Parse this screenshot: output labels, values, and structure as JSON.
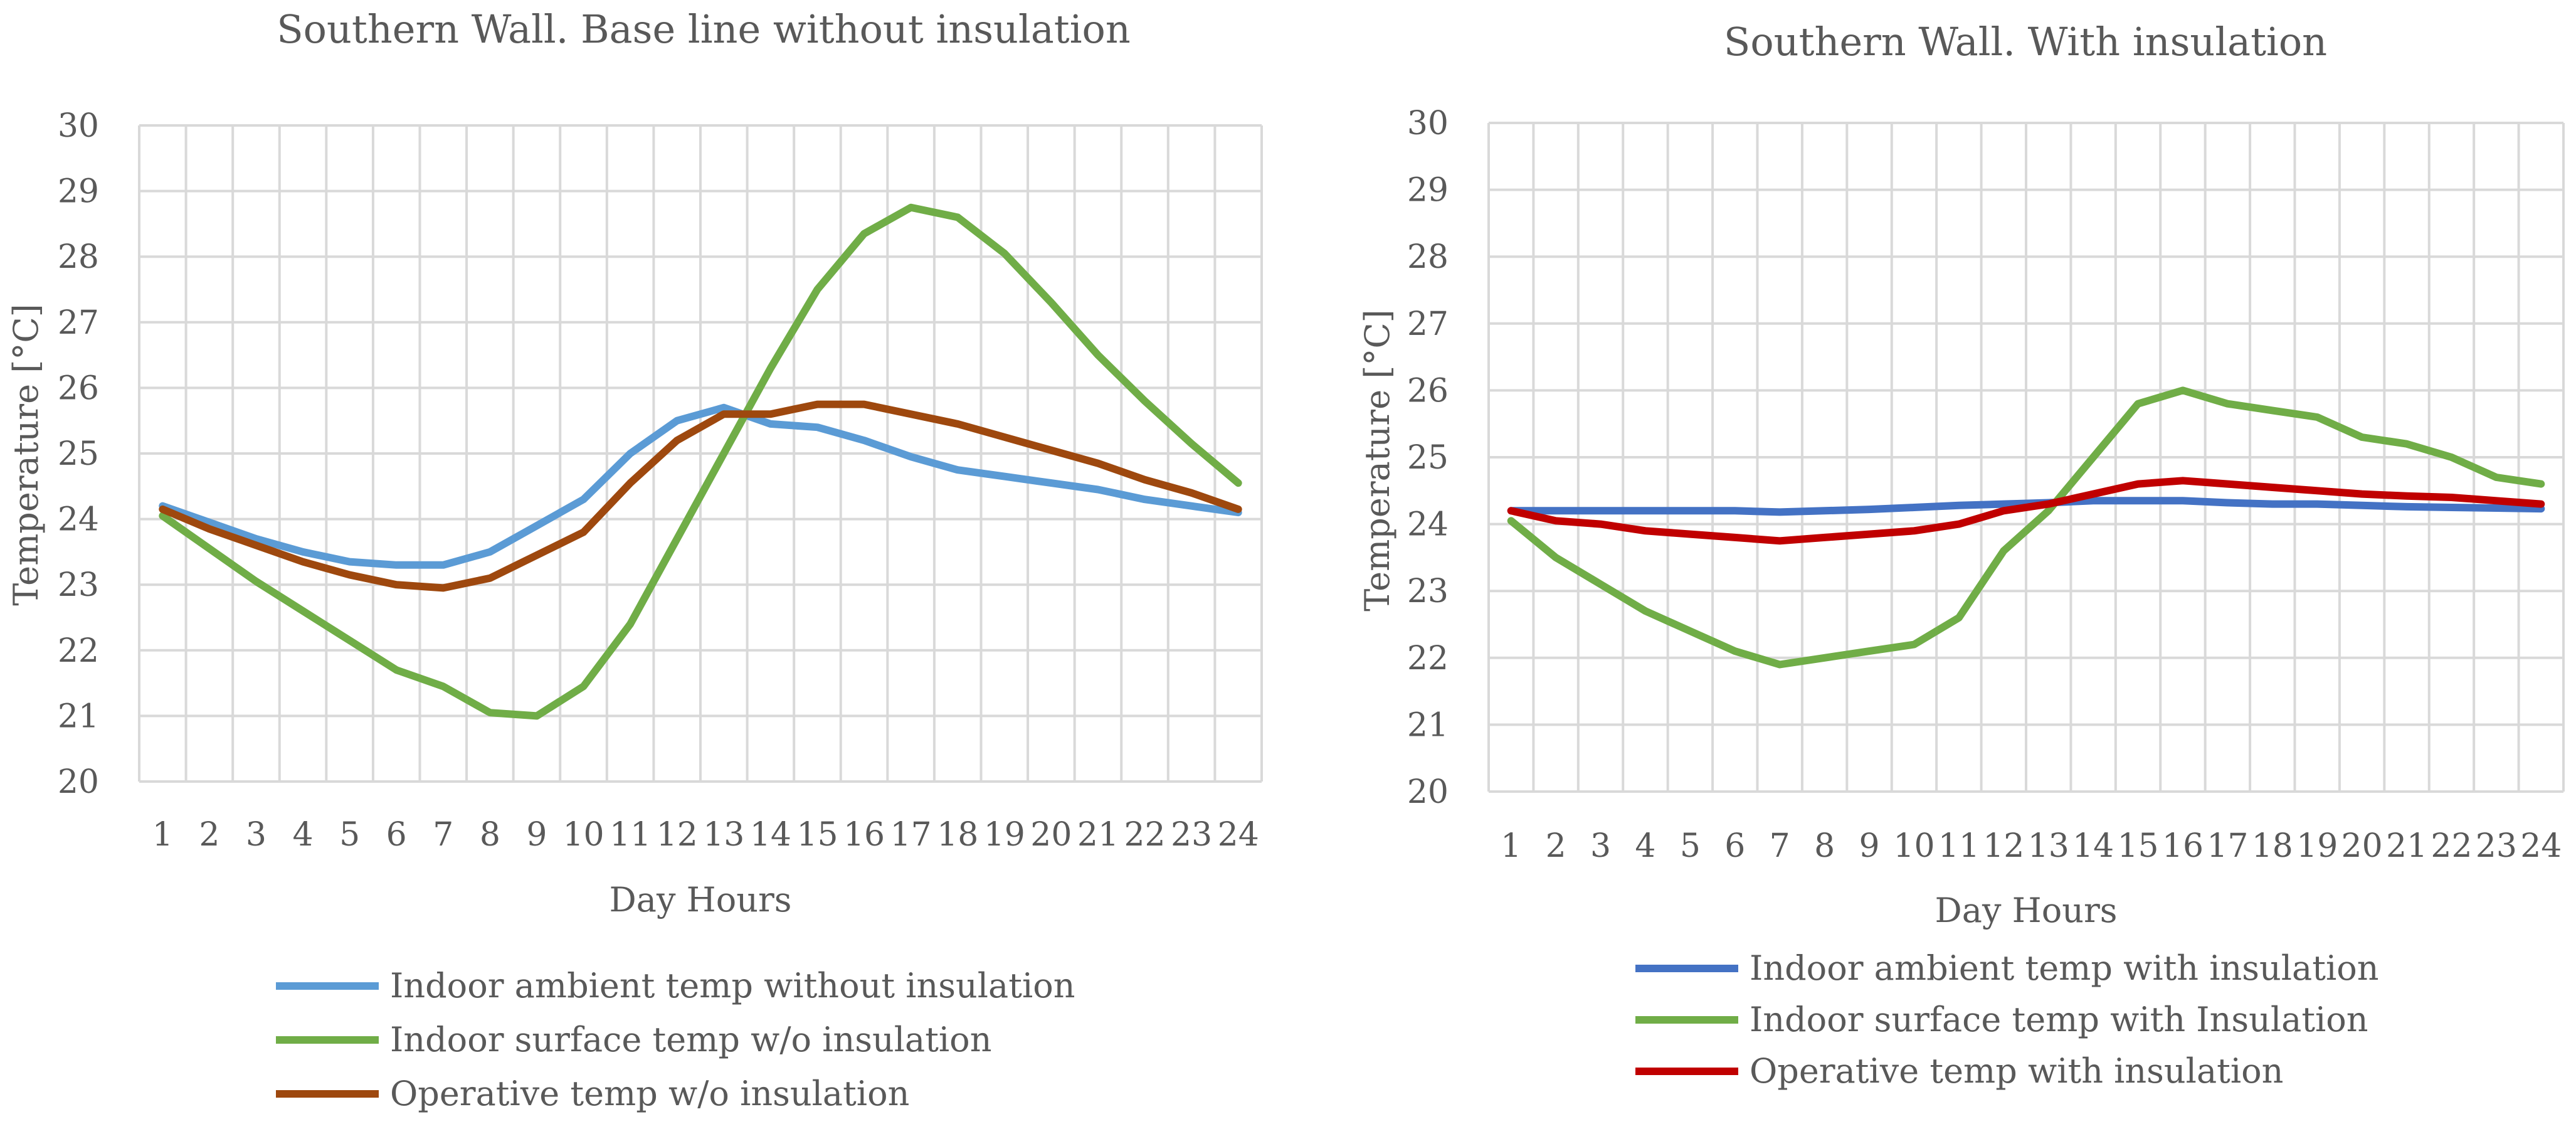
{
  "chart_data": [
    {
      "type": "line",
      "title": "Southern Wall. Base line without insulation",
      "xlabel": "Day Hours",
      "ylabel": "Temperature [°C]",
      "ylim": [
        20,
        30
      ],
      "grid": true,
      "legend_position": "bottom",
      "categories": [
        1,
        2,
        3,
        4,
        5,
        6,
        7,
        8,
        9,
        10,
        11,
        12,
        13,
        14,
        15,
        16,
        17,
        18,
        19,
        20,
        21,
        22,
        23,
        24
      ],
      "yticks": [
        20,
        21,
        22,
        23,
        24,
        25,
        26,
        27,
        28,
        29,
        30
      ],
      "series": [
        {
          "name": "Indoor ambient temp without insulation",
          "color": "#5b9bd5",
          "values": [
            24.2,
            23.95,
            23.7,
            23.5,
            23.35,
            23.3,
            23.3,
            23.5,
            23.9,
            24.3,
            25.0,
            25.5,
            25.7,
            25.45,
            25.4,
            25.2,
            24.95,
            24.75,
            24.65,
            24.55,
            24.45,
            24.3,
            24.2,
            24.1
          ]
        },
        {
          "name": "Indoor surface temp w/o insulation",
          "color": "#70ad47",
          "values": [
            24.05,
            23.55,
            23.05,
            22.6,
            22.15,
            21.7,
            21.45,
            21.05,
            21.0,
            21.45,
            22.4,
            23.7,
            25.0,
            26.3,
            27.5,
            28.35,
            28.75,
            28.6,
            28.05,
            27.3,
            26.5,
            25.8,
            25.15,
            24.55
          ]
        },
        {
          "name": "Operative temp w/o insulation",
          "color": "#9e480e",
          "values": [
            24.15,
            23.85,
            23.6,
            23.35,
            23.15,
            23.0,
            22.95,
            23.1,
            23.45,
            23.8,
            24.55,
            25.2,
            25.6,
            25.6,
            25.75,
            25.75,
            25.6,
            25.45,
            25.25,
            25.05,
            24.85,
            24.6,
            24.4,
            24.15
          ]
        }
      ]
    },
    {
      "type": "line",
      "title": "Southern Wall. With insulation",
      "xlabel": "Day Hours",
      "ylabel": "Temperature [°C]",
      "ylim": [
        20,
        30
      ],
      "grid": true,
      "legend_position": "bottom",
      "categories": [
        1,
        2,
        3,
        4,
        5,
        6,
        7,
        8,
        9,
        10,
        11,
        12,
        13,
        14,
        15,
        16,
        17,
        18,
        19,
        20,
        21,
        22,
        23,
        24
      ],
      "yticks": [
        20,
        21,
        22,
        23,
        24,
        25,
        26,
        27,
        28,
        29,
        30
      ],
      "series": [
        {
          "name": "Indoor ambient temp with insulation",
          "color": "#4472c4",
          "values": [
            24.2,
            24.2,
            24.2,
            24.2,
            24.2,
            24.2,
            24.18,
            24.2,
            24.22,
            24.25,
            24.28,
            24.3,
            24.32,
            24.35,
            24.35,
            24.35,
            24.32,
            24.3,
            24.3,
            24.28,
            24.26,
            24.25,
            24.24,
            24.23
          ]
        },
        {
          "name": "Indoor surface temp with Insulation",
          "color": "#70ad47",
          "values": [
            24.05,
            23.5,
            23.1,
            22.7,
            22.4,
            22.1,
            21.9,
            22.0,
            22.1,
            22.2,
            22.6,
            23.6,
            24.2,
            25.0,
            25.8,
            26.0,
            25.8,
            25.7,
            25.6,
            25.3,
            25.2,
            25.0,
            24.7,
            24.6
          ]
        },
        {
          "name": "Operative temp with insulation",
          "color": "#c00000",
          "values": [
            24.2,
            24.05,
            24.0,
            23.9,
            23.85,
            23.8,
            23.75,
            23.8,
            23.85,
            23.9,
            24.0,
            24.2,
            24.3,
            24.45,
            24.6,
            24.65,
            24.6,
            24.55,
            24.5,
            24.45,
            24.42,
            24.4,
            24.35,
            24.3
          ]
        }
      ]
    }
  ]
}
